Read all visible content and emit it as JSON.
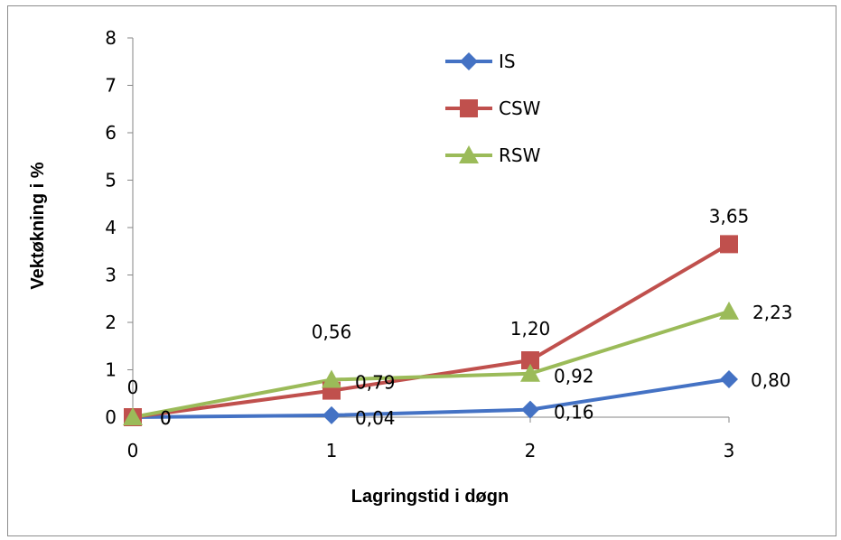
{
  "chart_data": {
    "type": "line",
    "title": "",
    "xlabel": "Lagringstid i døgn",
    "ylabel": "Vektøkning i %",
    "x": [
      0,
      1,
      2,
      3
    ],
    "x_tick_labels": [
      "0",
      "1",
      "2",
      "3"
    ],
    "y_tick_labels": [
      "0",
      "1",
      "2",
      "3",
      "4",
      "5",
      "6",
      "7",
      "8"
    ],
    "ylim": [
      0,
      8
    ],
    "grid": false,
    "legend_position": "top-center",
    "series": [
      {
        "name": "IS",
        "color": "#4472C4",
        "marker": "diamond",
        "values": [
          0,
          0.04,
          0.16,
          0.8
        ],
        "labels": [
          "0",
          "0,04",
          "0,16",
          "0,80"
        ]
      },
      {
        "name": "CSW",
        "color": "#C0504D",
        "marker": "square",
        "values": [
          0,
          0.56,
          1.2,
          3.65
        ],
        "labels": [
          "0",
          "0,56",
          "1,20",
          "3,65"
        ]
      },
      {
        "name": "RSW",
        "color": "#9BBB59",
        "marker": "triangle",
        "values": [
          0,
          0.79,
          0.92,
          2.23
        ],
        "labels": [
          "0",
          "0,79",
          "0,92",
          "2,23"
        ]
      }
    ]
  }
}
